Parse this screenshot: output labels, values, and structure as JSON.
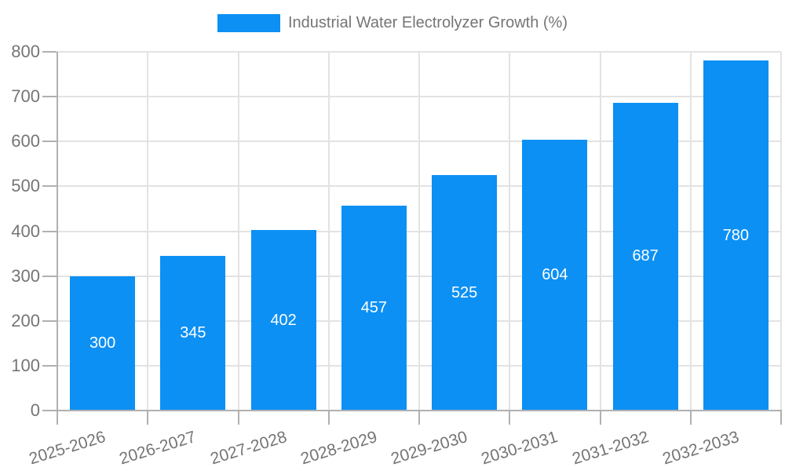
{
  "chart_data": {
    "type": "bar",
    "title": "Industrial Water Electrolyzer Growth (%)",
    "legend": {
      "label": "Industrial Water Electrolyzer Growth (%)",
      "position": "top-center"
    },
    "categories": [
      "2025-2026",
      "2026-2027",
      "2027-2028",
      "2028-2029",
      "2029-2030",
      "2030-2031",
      "2031-2032",
      "2032-2033"
    ],
    "series": [
      {
        "name": "Industrial Water Electrolyzer Growth (%)",
        "values": [
          300,
          345,
          402,
          457,
          525,
          604,
          687,
          780
        ]
      }
    ],
    "value_labels_shown": true,
    "xlabel": "",
    "ylabel": "",
    "ylim": [
      0,
      800
    ],
    "y_tick_step": 100,
    "grid": "both",
    "x_label_rotation_deg": -17,
    "colors": {
      "bar": "#0c90f4",
      "value_label": "#ffffff",
      "axis_text": "#757575",
      "grid_line": "#e3e3e3",
      "axis_line": "#b0b0b0",
      "background": "#ffffff"
    }
  }
}
